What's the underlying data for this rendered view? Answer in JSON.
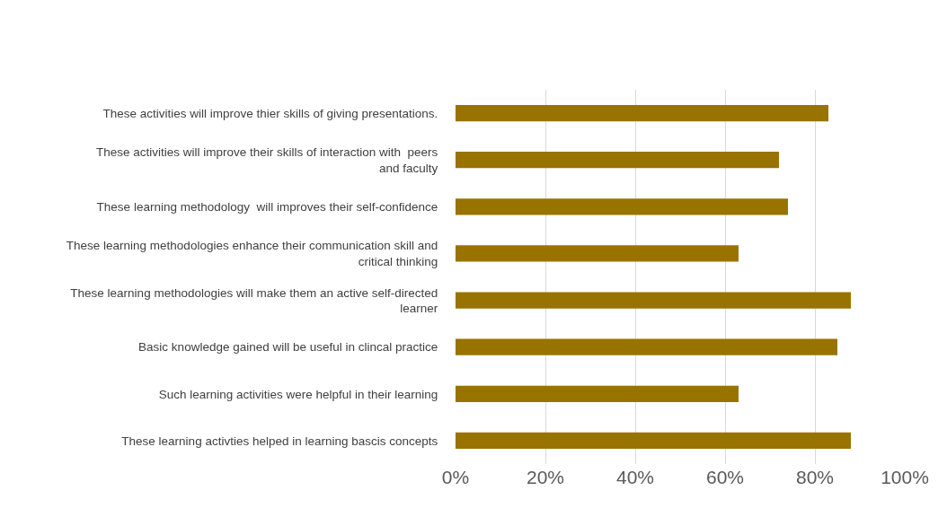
{
  "chart_data": {
    "type": "bar",
    "orientation": "horizontal",
    "categories": [
      "These activities will improve thier skills of giving presentations.",
      "These activities will improve their skills of interaction with  peers and faculty",
      "These learning methodology  will improves their self-confidence",
      "These learning methodologies enhance their communication skill and critical thinking",
      "These learning methodologies will make them an active self-directed learner",
      "Basic knowledge gained will be useful in clincal practice",
      "Such learning activities were helpful in their learning",
      "These learning activties helped in learning bascis concepts"
    ],
    "values": [
      83,
      72,
      74,
      63,
      88,
      85,
      63,
      88
    ],
    "color": "#997300",
    "xlim": [
      0,
      100
    ],
    "xticks": [
      {
        "value": 0,
        "label": "0%"
      },
      {
        "value": 20,
        "label": "20%"
      },
      {
        "value": 40,
        "label": "40%"
      },
      {
        "value": 60,
        "label": "60%"
      },
      {
        "value": 80,
        "label": "80%"
      },
      {
        "value": 100,
        "label": "100%"
      }
    ],
    "grid": "x"
  }
}
